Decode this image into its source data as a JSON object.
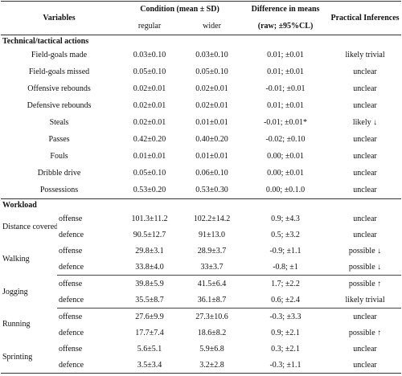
{
  "header": {
    "variables": "Variables",
    "condition": "Condition (mean ± SD)",
    "regular": "regular",
    "wider": "wider",
    "difference": "Difference in means",
    "difference_sub": "(raw; ±95%CL)",
    "inferences": "Practical Inferences"
  },
  "technical": {
    "title": "Technical/tactical actions",
    "rows": [
      [
        "Field-goals made",
        "0.03±0.10",
        "0.03±0.10",
        "0.01; ±0.01",
        "likely trivial"
      ],
      [
        "Field-goals missed",
        "0.05±0.10",
        "0.05±0.10",
        "0.01; ±0.01",
        "unclear"
      ],
      [
        "Offensive rebounds",
        "0.02±0.01",
        "0.02±0.01",
        "-0.01; ±0.01",
        "unclear"
      ],
      [
        "Defensive rebounds",
        "0.02±0.01",
        "0.02±0.01",
        "0.01; ±0.01",
        "unclear"
      ],
      [
        "Steals",
        "0.02±0.01",
        "0.01±0.01",
        "-0.01; ±0.01*",
        "likely ↓"
      ],
      [
        "Passes",
        "0.42±0.20",
        "0.40±0.20",
        "-0.02; ±0.10",
        "unclear"
      ],
      [
        "Fouls",
        "0.01±0.01",
        "0.01±0.01",
        "0.00; ±0.01",
        "unclear"
      ],
      [
        "Dribble drive",
        "0.05±0.10",
        "0.06±0.10",
        "0.00; ±0.01",
        "unclear"
      ],
      [
        "Possessions",
        "0.53±0.20",
        "0.53±0.30",
        "0.00; ±0.1.0",
        "unclear"
      ]
    ]
  },
  "workload": {
    "title": "Workload",
    "groups": [
      {
        "variable": "Distance covered",
        "rows": [
          [
            "offense",
            "101.3±11.2",
            "102.2±14.2",
            "0.9; ±4.3",
            "unclear"
          ],
          [
            "defence",
            "90.5±12.7",
            "91±13.0",
            "0.5; ±3.2",
            "unclear"
          ]
        ]
      },
      {
        "variable": "Walking",
        "rows": [
          [
            "offense",
            "29.8±3.1",
            "28.9±3.7",
            "-0.9; ±1.1",
            "possible ↓"
          ],
          [
            "defence",
            "33.8±4.0",
            "33±3.7",
            "-0.8; ±1",
            "possible ↓"
          ]
        ]
      },
      {
        "variable": "Jogging",
        "rows": [
          [
            "offense",
            "39.8±5.9",
            "41.5±6.4",
            "1.7; ±2.2",
            "possible ↑"
          ],
          [
            "defence",
            "35.5±8.7",
            "36.1±8.7",
            "0.6; ±2.4",
            "likely trivial"
          ]
        ]
      },
      {
        "variable": "Running",
        "rows": [
          [
            "offense",
            "27.6±9.9",
            "27.3±10.6",
            "-0.3; ±3.3",
            "unclear"
          ],
          [
            "defence",
            "17.7±7.4",
            "18.6±8.2",
            "0.9; ±2.1",
            "possible ↑"
          ]
        ]
      },
      {
        "variable": "Sprinting",
        "rows": [
          [
            "offense",
            "5.6±5.1",
            "5.9±6.8",
            "0.3; ±2.1",
            "unclear"
          ],
          [
            "defence",
            "3.5±3.4",
            "3.2±2.8",
            "-0.3; ±1.1",
            "unclear"
          ]
        ]
      }
    ]
  }
}
